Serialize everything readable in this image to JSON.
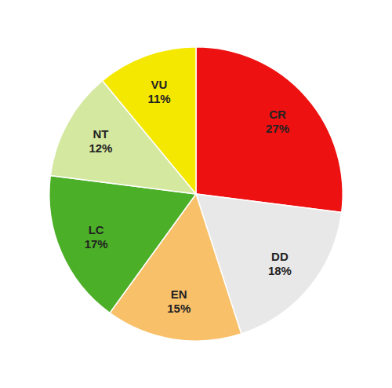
{
  "chart_data": {
    "type": "pie",
    "categories": [
      "CR",
      "DD",
      "EN",
      "LC",
      "NT",
      "VU"
    ],
    "values": [
      27,
      18,
      15,
      17,
      12,
      11
    ],
    "value_labels": [
      "27%",
      "18%",
      "15%",
      "17%",
      "12%",
      "11%"
    ],
    "colors": [
      "#ee1111",
      "#e8e8e8",
      "#f9c06a",
      "#4caf28",
      "#d4e8a0",
      "#f5e800"
    ],
    "data_labels": true
  }
}
